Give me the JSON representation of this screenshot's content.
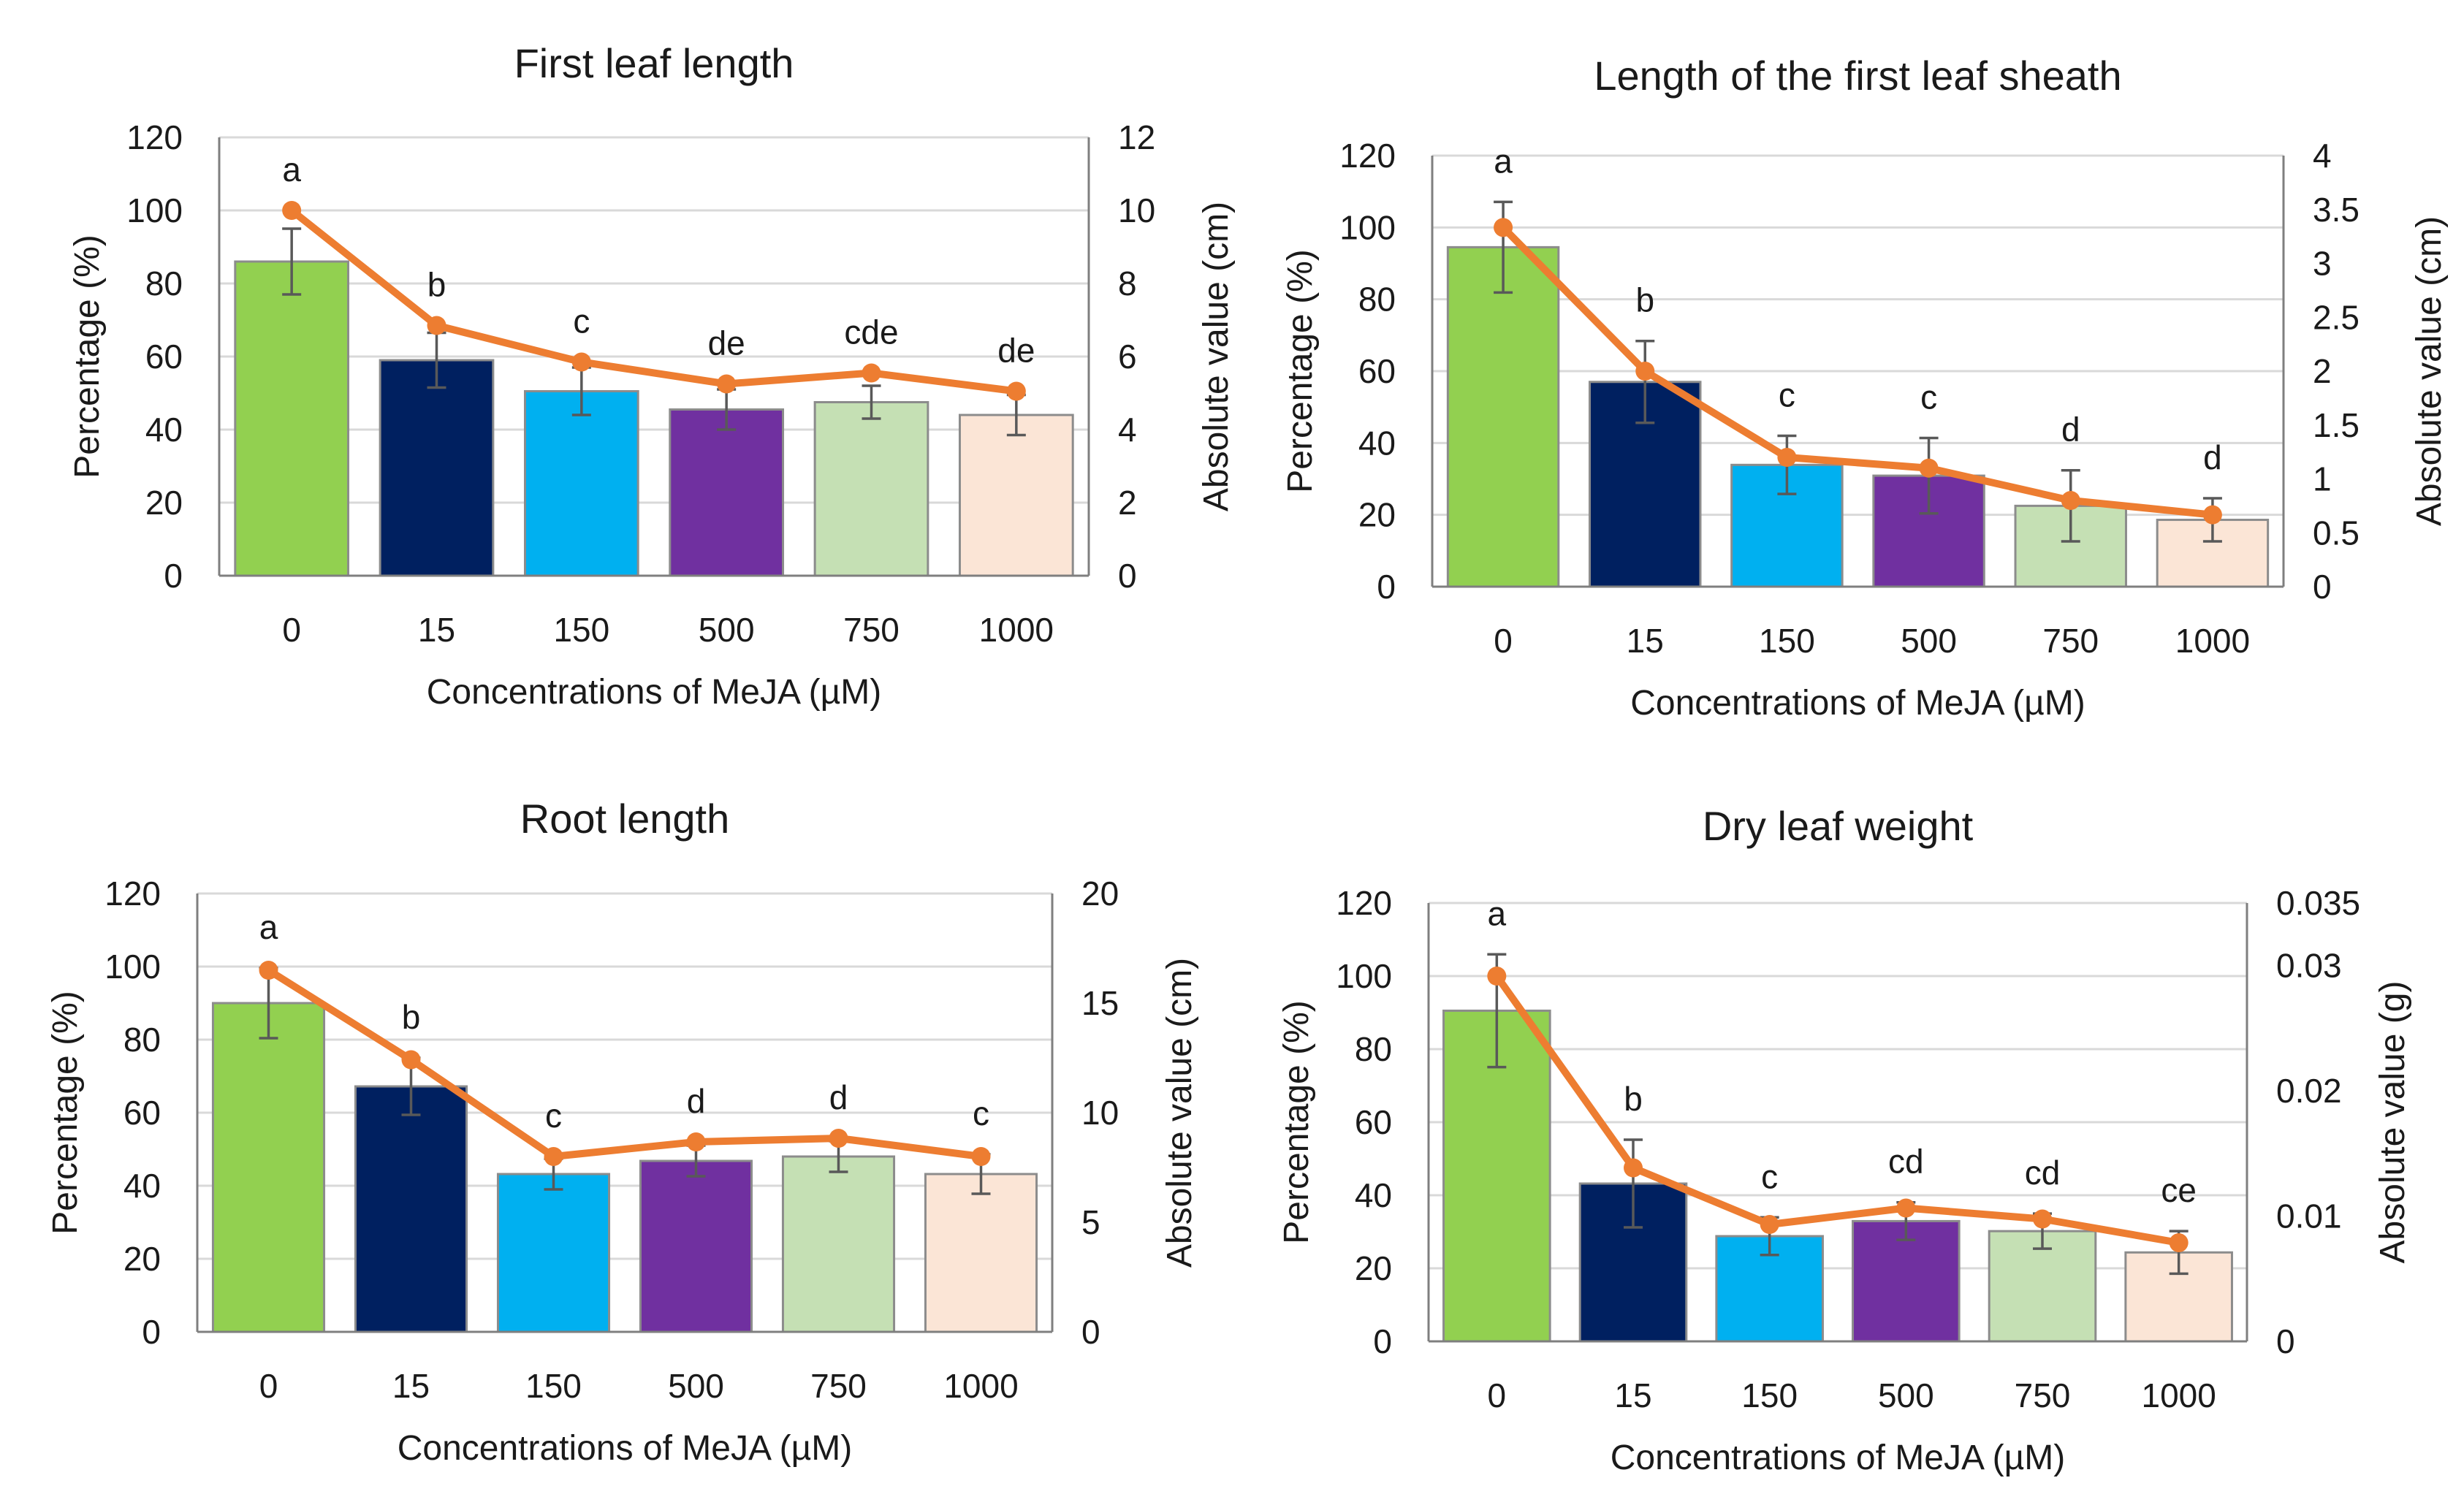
{
  "figure": {
    "categories": [
      "0",
      "15",
      "150",
      "500",
      "750",
      "1000"
    ],
    "bar_colors": [
      "#92d050",
      "#002060",
      "#00b0f0",
      "#7030a0",
      "#c5e0b4",
      "#fbe5d6"
    ],
    "bar_stroke": "#8c8c8c",
    "line_color": "#ed7d31",
    "error_color": "#595959",
    "grid_color": "#d9d9d9"
  },
  "chart_data": [
    {
      "type": "bar",
      "panel": "top-left",
      "title": "First leaf length",
      "xlabel": "Concentrations of MeJA  (µM)",
      "ylabel": "Percentage (%)",
      "y2label": "Absolute value (cm)",
      "categories": [
        "0",
        "15",
        "150",
        "500",
        "750",
        "1000"
      ],
      "ylim": [
        0,
        120
      ],
      "yticks": [
        "0",
        "20",
        "40",
        "60",
        "80",
        "100",
        "120"
      ],
      "y2lim": [
        0,
        12
      ],
      "y2ticks": [
        "0",
        "2",
        "4",
        "6",
        "8",
        "10",
        "12"
      ],
      "grid": true,
      "series": [
        {
          "name": "Absolute value",
          "type": "bar",
          "axis": "secondary",
          "values": [
            8.6,
            5.9,
            5.05,
            4.55,
            4.75,
            4.4
          ],
          "errors": [
            0.9,
            0.75,
            0.65,
            0.55,
            0.45,
            0.55
          ]
        },
        {
          "name": "Percentage",
          "type": "line",
          "axis": "primary",
          "values": [
            100,
            68.5,
            58.5,
            52.5,
            55.5,
            50.5
          ]
        }
      ],
      "letters": [
        "a",
        "b",
        "c",
        "de",
        "cde",
        "de"
      ]
    },
    {
      "type": "bar",
      "panel": "top-right",
      "title": "Length of the first leaf sheath",
      "xlabel": "Concentrations of MeJA (µM)",
      "ylabel": "Percentage (%)",
      "y2label": "Absolute value (cm)",
      "categories": [
        "0",
        "15",
        "150",
        "500",
        "750",
        "1000"
      ],
      "ylim": [
        0,
        120
      ],
      "yticks": [
        "0",
        "20",
        "40",
        "60",
        "80",
        "100",
        "120"
      ],
      "y2lim": [
        0,
        4
      ],
      "y2ticks": [
        "0",
        "0.5",
        "1",
        "1.5",
        "2",
        "2.5",
        "3",
        "3.5",
        "4"
      ],
      "grid": true,
      "series": [
        {
          "name": "Absolute value",
          "type": "bar",
          "axis": "secondary",
          "values": [
            3.15,
            1.9,
            1.13,
            1.03,
            0.75,
            0.62
          ],
          "errors": [
            0.42,
            0.38,
            0.27,
            0.35,
            0.33,
            0.2
          ]
        },
        {
          "name": "Percentage",
          "type": "line",
          "axis": "primary",
          "values": [
            100,
            60,
            36,
            33,
            24,
            20
          ]
        }
      ],
      "letters": [
        "a",
        "b",
        "c",
        "c",
        "d",
        "d"
      ]
    },
    {
      "type": "bar",
      "panel": "bottom-left",
      "title": "Root length",
      "xlabel": "Concentrations of MeJA (µM)",
      "ylabel": "Percentage (%)",
      "y2label": "Absolute value (cm)",
      "categories": [
        "0",
        "15",
        "150",
        "500",
        "750",
        "1000"
      ],
      "ylim": [
        0,
        120
      ],
      "yticks": [
        "0",
        "20",
        "40",
        "60",
        "80",
        "100",
        "120"
      ],
      "y2lim": [
        0,
        20
      ],
      "y2ticks": [
        "0",
        "5",
        "10",
        "15",
        "20"
      ],
      "grid": true,
      "series": [
        {
          "name": "Absolute value",
          "type": "bar",
          "axis": "secondary",
          "values": [
            15.0,
            11.2,
            7.2,
            7.8,
            8.0,
            7.2
          ],
          "errors": [
            1.6,
            1.3,
            0.7,
            0.7,
            0.7,
            0.9
          ]
        },
        {
          "name": "Percentage",
          "type": "line",
          "axis": "primary",
          "values": [
            99,
            74.5,
            48,
            52,
            53,
            48
          ]
        }
      ],
      "letters": [
        "a",
        "b",
        "c",
        "d",
        "d",
        "c"
      ]
    },
    {
      "type": "bar",
      "panel": "bottom-right",
      "title": "Dry leaf weight",
      "xlabel": "Concentrations of MeJA  (µM)",
      "ylabel": "Percentage (%)",
      "y2label": "Absolute value (g)",
      "categories": [
        "0",
        "15",
        "150",
        "500",
        "750",
        "1000"
      ],
      "ylim": [
        0,
        120
      ],
      "yticks": [
        "0",
        "20",
        "40",
        "60",
        "80",
        "100",
        "120"
      ],
      "y2lim": [
        0,
        0.035
      ],
      "y2ticks": [
        "0",
        "0.01",
        "0.02",
        "0.03",
        "0.035"
      ],
      "grid": true,
      "series": [
        {
          "name": "Absolute value",
          "type": "bar",
          "axis": "secondary",
          "values": [
            0.0264,
            0.0126,
            0.0084,
            0.0096,
            0.0088,
            0.0071
          ],
          "errors": [
            0.0045,
            0.0035,
            0.0015,
            0.0015,
            0.0014,
            0.0017
          ]
        },
        {
          "name": "Percentage",
          "type": "line",
          "axis": "primary",
          "values": [
            100,
            47.5,
            32,
            36.5,
            33.5,
            27
          ]
        }
      ],
      "letters": [
        "a",
        "b",
        "c",
        "cd",
        "cd",
        "ce"
      ]
    }
  ]
}
